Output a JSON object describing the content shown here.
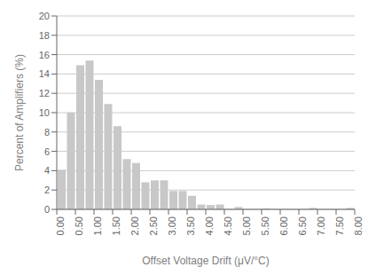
{
  "chart_data": {
    "type": "histogram",
    "bins": [
      0,
      0.25,
      0.5,
      0.75,
      1,
      1.25,
      1.5,
      1.75,
      2,
      2.25,
      2.5,
      2.75,
      3,
      3.25,
      3.5,
      3.75,
      4,
      4.25,
      4.5,
      4.75,
      5,
      5.25,
      5.5,
      5.75,
      6,
      6.25,
      6.5,
      6.75,
      7,
      7.25,
      7.5,
      7.75,
      8
    ],
    "values": [
      4.1,
      10.0,
      14.9,
      15.4,
      13.4,
      10.9,
      8.6,
      5.2,
      4.8,
      2.8,
      3.0,
      3.0,
      1.9,
      1.9,
      1.4,
      0.5,
      0.45,
      0.5,
      0.0,
      0.25,
      0.0,
      0.0,
      0.1,
      0.0,
      0.0,
      0.0,
      0.0,
      0.15,
      0.0,
      0.0,
      0.0,
      0.15
    ],
    "color": "#c8c8c8",
    "xlabel": "Offset Voltage Drift (μV/°C)",
    "ylabel": "Percent of Amplifiers (%)",
    "xlim": [
      0,
      8
    ],
    "ylim": [
      0,
      20
    ],
    "xticks": [
      {
        "value": 0,
        "label": "0.00"
      },
      {
        "value": 0.5,
        "label": "0.50"
      },
      {
        "value": 1,
        "label": "1.00"
      },
      {
        "value": 1.5,
        "label": "1.50"
      },
      {
        "value": 2,
        "label": "2.00"
      },
      {
        "value": 2.5,
        "label": "2.50"
      },
      {
        "value": 3,
        "label": "3.00"
      },
      {
        "value": 3.5,
        "label": "3.50"
      },
      {
        "value": 4,
        "label": "4.00"
      },
      {
        "value": 4.5,
        "label": "4.50"
      },
      {
        "value": 5,
        "label": "5.00"
      },
      {
        "value": 5.5,
        "label": "5.50"
      },
      {
        "value": 6,
        "label": "6.00"
      },
      {
        "value": 6.5,
        "label": "6.50"
      },
      {
        "value": 7,
        "label": "7.00"
      },
      {
        "value": 7.5,
        "label": "7.50"
      },
      {
        "value": 8,
        "label": "8.00"
      }
    ],
    "yticks": [
      0,
      2,
      4,
      6,
      8,
      10,
      12,
      14,
      16,
      18,
      20
    ],
    "grid": "y"
  }
}
